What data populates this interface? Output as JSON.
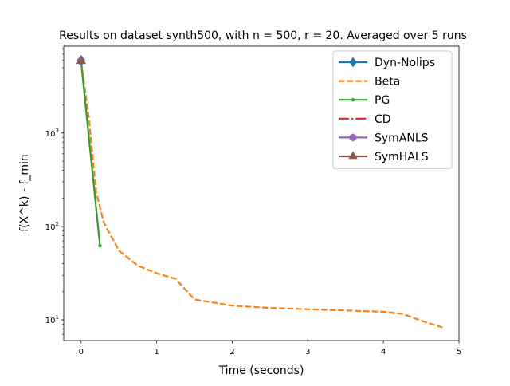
{
  "chart_data": {
    "type": "line",
    "title": "Results on dataset synth500, with n = 500, r = 20. Averaged over 5 runs",
    "xlabel": "Time (seconds)",
    "ylabel": "f(X^k) - f_min",
    "xlim": [
      -0.23,
      5.0
    ],
    "ylim": [
      6,
      8500
    ],
    "yscale": "log",
    "grid": false,
    "legend_position": "top-right",
    "x_ticks": [
      0,
      1,
      2,
      3,
      4,
      5
    ],
    "x_tick_labels": [
      "0",
      "1",
      "2",
      "3",
      "4",
      "5"
    ],
    "y_major_ticks": [
      10,
      100,
      1000
    ],
    "y_tick_labels": [
      "10^1",
      "10^2",
      "10^3"
    ],
    "series": [
      {
        "name": "Dyn-Nolips",
        "color": "#1f77b4",
        "style": "solid",
        "marker": "diamond",
        "x": [
          0
        ],
        "y": [
          6000
        ]
      },
      {
        "name": "Beta",
        "color": "#ff7f0e",
        "style": "dashed",
        "marker": "none",
        "x": [
          0,
          0.1,
          0.2,
          0.3,
          0.5,
          0.75,
          1.0,
          1.25,
          1.5,
          2.0,
          2.5,
          3.0,
          3.5,
          4.0,
          4.25,
          4.5,
          4.78
        ],
        "y": [
          5800,
          1500,
          230,
          110,
          55,
          38,
          31.5,
          27.5,
          16.5,
          14.2,
          13.4,
          13.0,
          12.6,
          12.2,
          11.6,
          9.8,
          8.3
        ]
      },
      {
        "name": "PG",
        "color": "#2ca02c",
        "style": "solid",
        "marker": "point",
        "x": [
          0,
          0.25
        ],
        "y": [
          5800,
          62
        ]
      },
      {
        "name": "CD",
        "color": "#d62728",
        "style": "dashdot",
        "marker": "none",
        "x": [
          0
        ],
        "y": [
          5900
        ]
      },
      {
        "name": "SymANLS",
        "color": "#9467bd",
        "style": "solid",
        "marker": "hexagon",
        "x": [
          0
        ],
        "y": [
          5900
        ]
      },
      {
        "name": "SymHALS",
        "color": "#8c564b",
        "style": "solid",
        "marker": "triangle",
        "x": [
          0
        ],
        "y": [
          5900
        ]
      }
    ]
  }
}
